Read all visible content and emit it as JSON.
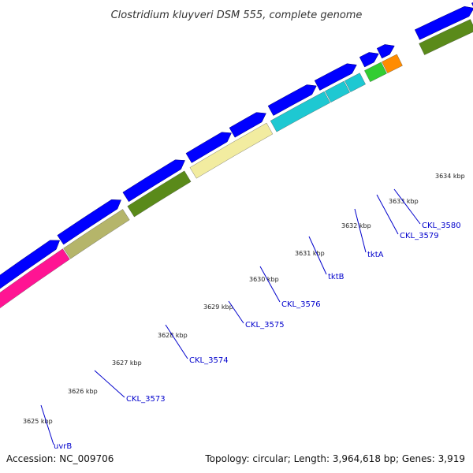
{
  "title": "Clostridium kluyveri DSM 555, complete genome",
  "footer": {
    "accession": "Accession: NC_009706",
    "summary": "Topology: circular; Length: 3,964,618 bp; Genes: 3,919"
  },
  "colors": {
    "backbone": "#7f7f7f",
    "cds": "#0000ff",
    "tick": "#1a7a1a",
    "label": "#0000cc"
  },
  "kbp_labels": [
    "3625 kbp",
    "3626 kbp",
    "3627 kbp",
    "3628 kbp",
    "3629 kbp",
    "3630 kbp",
    "3631 kbp",
    "3632 kbp",
    "3633 kbp",
    "3634 kbp"
  ],
  "genes": [
    {
      "label": "uvrB",
      "color": "#ff1493"
    },
    {
      "label": "CKL_3573",
      "color": "#b5b56a"
    },
    {
      "label": "CKL_3574",
      "color": "#5a8a1a"
    },
    {
      "label": "CKL_3575",
      "color": "#f2eca0"
    },
    {
      "label": "CKL_3576",
      "color": "#1ec8d2"
    },
    {
      "label": "tktB",
      "color": "#1ec8d2"
    },
    {
      "label": "tktA",
      "color": "#1ec8d2"
    },
    {
      "label": "CKL_3579",
      "color": "#32cd32"
    },
    {
      "label": "CKL_3580",
      "color": "#ff8c00"
    },
    {
      "label": "",
      "color": "#5a8a1a"
    }
  ]
}
